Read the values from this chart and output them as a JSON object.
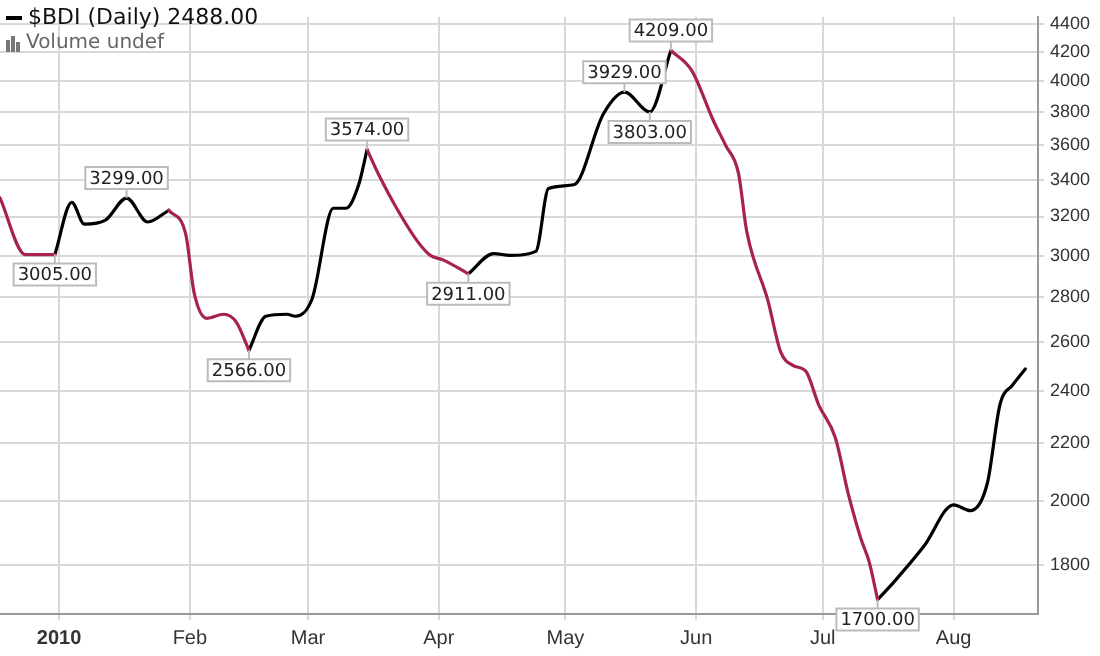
{
  "chart_data": {
    "type": "line",
    "title": "$BDI (Daily) 2488.00",
    "subtitle": "Volume undef",
    "x": [
      "2009-12-18",
      "2009-12-24",
      "2009-12-31",
      "2010-01-04",
      "2010-01-07",
      "2010-01-12",
      "2010-01-17",
      "2010-01-22",
      "2010-01-27",
      "2010-01-31",
      "2010-02-02",
      "2010-02-05",
      "2010-02-09",
      "2010-02-12",
      "2010-02-15",
      "2010-02-19",
      "2010-02-24",
      "2010-02-26",
      "2010-03-02",
      "2010-03-07",
      "2010-03-10",
      "2010-03-13",
      "2010-03-15",
      "2010-03-18",
      "2010-03-22",
      "2010-03-27",
      "2010-03-30",
      "2010-04-02",
      "2010-04-08",
      "2010-04-14",
      "2010-04-18",
      "2010-04-24",
      "2010-04-27",
      "2010-05-03",
      "2010-05-10",
      "2010-05-15",
      "2010-05-21",
      "2010-05-26",
      "2010-05-31",
      "2010-06-05",
      "2010-06-08",
      "2010-06-11",
      "2010-06-13",
      "2010-06-18",
      "2010-06-21",
      "2010-06-24",
      "2010-06-27",
      "2010-06-30",
      "2010-07-04",
      "2010-07-07",
      "2010-07-10",
      "2010-07-12",
      "2010-07-14",
      "2010-07-18",
      "2010-07-25",
      "2010-08-01",
      "2010-08-05",
      "2010-08-09",
      "2010-08-12",
      "2010-08-15",
      "2010-08-18"
    ],
    "series": [
      {
        "color": "#a8234b",
        "values": [
          3300,
          3005,
          3005,
          null,
          null,
          null,
          null,
          null,
          3233,
          3110,
          2822,
          2705,
          2723,
          2688,
          2566,
          null,
          null,
          null,
          null,
          null,
          null,
          null,
          3574,
          3417,
          3244,
          3070,
          3001,
          2979,
          2911,
          null,
          null,
          null,
          null,
          null,
          null,
          null,
          null,
          4209,
          4070,
          3753,
          3598,
          3439,
          3120,
          2785,
          2560,
          2502,
          2478,
          2346,
          2220,
          2027,
          1881,
          1809,
          1700,
          null,
          null,
          null,
          null,
          null,
          null,
          null,
          null
        ],
        "value_labels": [
          null,
          null,
          "3005.00",
          null,
          null,
          null,
          null,
          null,
          null,
          null,
          null,
          null,
          null,
          null,
          "2566.00",
          null,
          null,
          null,
          null,
          null,
          null,
          null,
          null,
          null,
          null,
          null,
          null,
          null,
          "2911.00",
          null,
          null,
          null,
          null,
          null,
          null,
          null,
          null,
          "4209.00",
          null,
          null,
          null,
          null,
          null,
          null,
          null,
          null,
          null,
          null,
          null,
          null,
          null,
          null,
          "1700.00",
          null,
          null,
          null,
          null,
          null,
          null,
          null,
          null
        ]
      },
      {
        "color": "#000000",
        "values": [
          null,
          null,
          3005,
          3276,
          3160,
          3181,
          3299,
          3171,
          3233,
          null,
          null,
          null,
          null,
          null,
          2566,
          2714,
          2723,
          2714,
          2795,
          3244,
          3244,
          3372,
          3574,
          null,
          null,
          null,
          null,
          null,
          2911,
          3010,
          3001,
          3021,
          3351,
          3372,
          3790,
          3929,
          3803,
          4209,
          null,
          null,
          null,
          null,
          null,
          null,
          null,
          null,
          null,
          null,
          null,
          null,
          null,
          null,
          1700,
          1752,
          1857,
          1988,
          1969,
          2060,
          2346,
          2423,
          2488
        ],
        "value_labels": [
          null,
          null,
          null,
          null,
          null,
          null,
          "3299.00",
          null,
          null,
          null,
          null,
          null,
          null,
          null,
          null,
          null,
          null,
          null,
          null,
          null,
          null,
          null,
          "3574.00",
          null,
          null,
          null,
          null,
          null,
          null,
          null,
          null,
          null,
          null,
          null,
          null,
          "3929.00",
          "3803.00",
          null,
          null,
          null,
          null,
          null,
          null,
          null,
          null,
          null,
          null,
          null,
          null,
          null,
          null,
          null,
          null,
          null,
          null,
          null,
          null,
          null,
          null,
          null,
          null
        ]
      }
    ],
    "xlim": [
      "2009-12-18",
      "2010-08-21"
    ],
    "xticks": [
      {
        "value": "2010-01-01",
        "label": "2010"
      },
      {
        "value": "2010-02-01",
        "label": "Feb"
      },
      {
        "value": "2010-03-01",
        "label": "Mar"
      },
      {
        "value": "2010-04-01",
        "label": "Apr"
      },
      {
        "value": "2010-05-01",
        "label": "May"
      },
      {
        "value": "2010-06-01",
        "label": "Jun"
      },
      {
        "value": "2010-07-01",
        "label": "Jul"
      },
      {
        "value": "2010-08-01",
        "label": "Aug"
      }
    ],
    "log": "y",
    "ylim": [
      1660,
      4450
    ],
    "yticks": [
      1800,
      2000,
      2200,
      2400,
      2600,
      2800,
      3000,
      3200,
      3400,
      3600,
      3800,
      4000,
      4200,
      4400
    ],
    "grid": true,
    "marker": "none",
    "line_style": "solid",
    "legend": false
  }
}
